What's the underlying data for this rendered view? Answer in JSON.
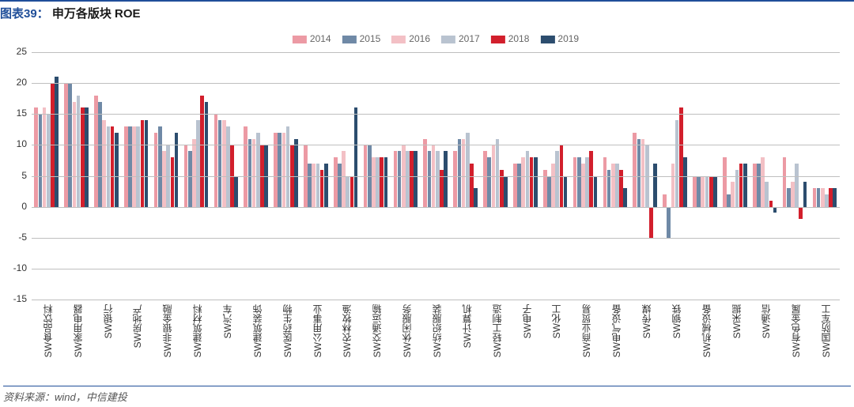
{
  "title_prefix": "图表39：",
  "title": "申万各版块 ROE",
  "source": "资料来源：wind，中信建投",
  "chart": {
    "type": "bar",
    "ylim": [
      -15,
      25
    ],
    "ytick_step": 5,
    "grid_color": "#bfbfbf",
    "background_color": "#ffffff",
    "axis_font_size": 12,
    "series": [
      {
        "name": "2014",
        "color": "#ec9aa4"
      },
      {
        "name": "2015",
        "color": "#6f89a6"
      },
      {
        "name": "2016",
        "color": "#f3c0c5"
      },
      {
        "name": "2017",
        "color": "#b9c3d0"
      },
      {
        "name": "2018",
        "color": "#d21f2c"
      },
      {
        "name": "2019",
        "color": "#2c4d6e"
      }
    ],
    "categories": [
      "SW食品饮料",
      "SW家用电器",
      "SW银行",
      "SW房地产",
      "SW非银金融",
      "SW建筑材料",
      "SW汽车",
      "SW建筑装饰",
      "SW医药生物",
      "SW公用事业",
      "SW农林牧渔",
      "SW交通运输",
      "SW休闲服务",
      "SW纺织服装",
      "SW计算机",
      "SW轻工制造",
      "SW电子",
      "SW化工",
      "SW商业贸易",
      "SW电气设备",
      "SW传媒",
      "SW钢铁",
      "SW机械设备",
      "SW采掘",
      "SW通信",
      "SW有色金属",
      "SW国防军工"
    ],
    "values": {
      "2014": [
        16,
        20,
        18,
        13,
        12,
        10,
        15,
        13,
        12,
        10,
        8,
        10,
        9,
        11,
        9,
        9,
        7,
        6,
        8,
        8,
        12,
        2,
        5,
        8,
        7,
        8,
        3
      ],
      "2015": [
        15,
        20,
        17,
        13,
        13,
        9,
        14,
        11,
        12,
        7,
        7,
        10,
        9,
        9,
        11,
        8,
        7,
        5,
        8,
        6,
        11,
        -5,
        5,
        2,
        7,
        3,
        3
      ],
      "2016": [
        16,
        17,
        14,
        13,
        9,
        11,
        14,
        11,
        12,
        7,
        9,
        8,
        10,
        10,
        11,
        10,
        8,
        7,
        7,
        7,
        11,
        7,
        5,
        4,
        8,
        4,
        3
      ],
      "2017": [
        15,
        18,
        13,
        13,
        10,
        14,
        13,
        12,
        13,
        7,
        5,
        8,
        9,
        9,
        12,
        11,
        9,
        9,
        8,
        7,
        10,
        14,
        5,
        6,
        4,
        7,
        2
      ],
      "2018": [
        20,
        16,
        13,
        14,
        8,
        18,
        10,
        10,
        10,
        6,
        5,
        8,
        9,
        6,
        7,
        6,
        8,
        10,
        9,
        6,
        -5,
        16,
        5,
        7,
        1,
        -2,
        3
      ],
      "2019": [
        21,
        16,
        12,
        14,
        12,
        17,
        5,
        10,
        11,
        7,
        16,
        8,
        9,
        9,
        3,
        5,
        8,
        5,
        5,
        3,
        7,
        8,
        5,
        7,
        -1,
        4,
        3
      ]
    },
    "bar_width_ratio": 0.82
  }
}
